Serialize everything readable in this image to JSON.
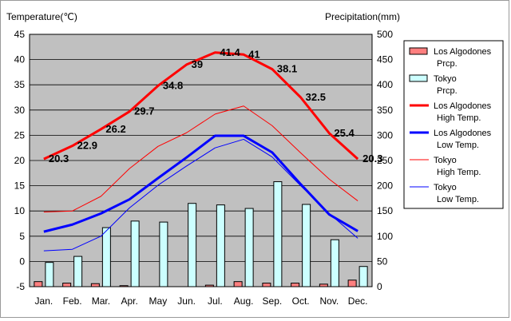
{
  "chart_data": {
    "type": "bar+line",
    "left_axis_title": "Temperature(℃)",
    "right_axis_title": "Precipitation(mm)",
    "categories": [
      "Jan.",
      "Feb.",
      "Mar.",
      "Apr.",
      "May",
      "Jun.",
      "Jul.",
      "Aug.",
      "Sep.",
      "Oct.",
      "Nov.",
      "Dec."
    ],
    "temp_ylim": [
      -5,
      45
    ],
    "temp_ticks": [
      -5,
      0,
      5,
      10,
      15,
      20,
      25,
      30,
      35,
      40,
      45
    ],
    "precip_ylim": [
      0,
      500
    ],
    "precip_ticks": [
      0,
      50,
      100,
      150,
      200,
      250,
      300,
      350,
      400,
      450,
      500
    ],
    "grid": true,
    "plot_background": "#c0c0c0",
    "legend_position": "right",
    "bar_series": [
      {
        "key": "la_prcp",
        "legend": [
          "Los Algodones",
          "Prcp."
        ],
        "color": "#ff7f7f",
        "values": [
          10,
          7,
          6,
          2,
          0,
          0,
          3,
          10,
          7,
          7,
          5,
          13
        ]
      },
      {
        "key": "tokyo_prcp",
        "legend": [
          "Tokyo",
          "Prcp."
        ],
        "color": "#ccffff",
        "values": [
          48,
          60,
          117,
          130,
          128,
          165,
          162,
          155,
          208,
          163,
          93,
          40
        ]
      }
    ],
    "line_series": [
      {
        "key": "la_high",
        "legend": [
          "Los Algodones",
          "High Temp."
        ],
        "color": "#ff0000",
        "width": 3,
        "values": [
          20.3,
          22.9,
          26.2,
          29.7,
          34.8,
          39,
          41.4,
          41,
          38.1,
          32.5,
          25.4,
          20.3
        ],
        "data_labels": [
          "20.3",
          "22.9",
          "26.2",
          "29.7",
          "34.8",
          "39",
          "41.4",
          "41",
          "38.1",
          "32.5",
          "25.4",
          "20.3"
        ]
      },
      {
        "key": "la_low",
        "legend": [
          "Los Algodones",
          "Low Temp."
        ],
        "color": "#0000ff",
        "width": 3,
        "values": [
          5.9,
          7.3,
          9.5,
          12.3,
          16.5,
          20.6,
          24.9,
          24.9,
          21.6,
          15.3,
          9.3,
          6.0
        ]
      },
      {
        "key": "tokyo_high",
        "legend": [
          "Tokyo",
          "High Temp."
        ],
        "color": "#ff0000",
        "width": 1,
        "values": [
          9.8,
          10.0,
          12.9,
          18.4,
          22.8,
          25.5,
          29.2,
          30.8,
          26.9,
          21.5,
          16.3,
          12.0
        ]
      },
      {
        "key": "tokyo_low",
        "legend": [
          "Tokyo",
          "Low Temp."
        ],
        "color": "#0000ff",
        "width": 1,
        "values": [
          2.1,
          2.4,
          5.0,
          10.6,
          15.1,
          18.9,
          22.5,
          24.2,
          20.7,
          15.0,
          9.5,
          4.6
        ]
      }
    ]
  }
}
